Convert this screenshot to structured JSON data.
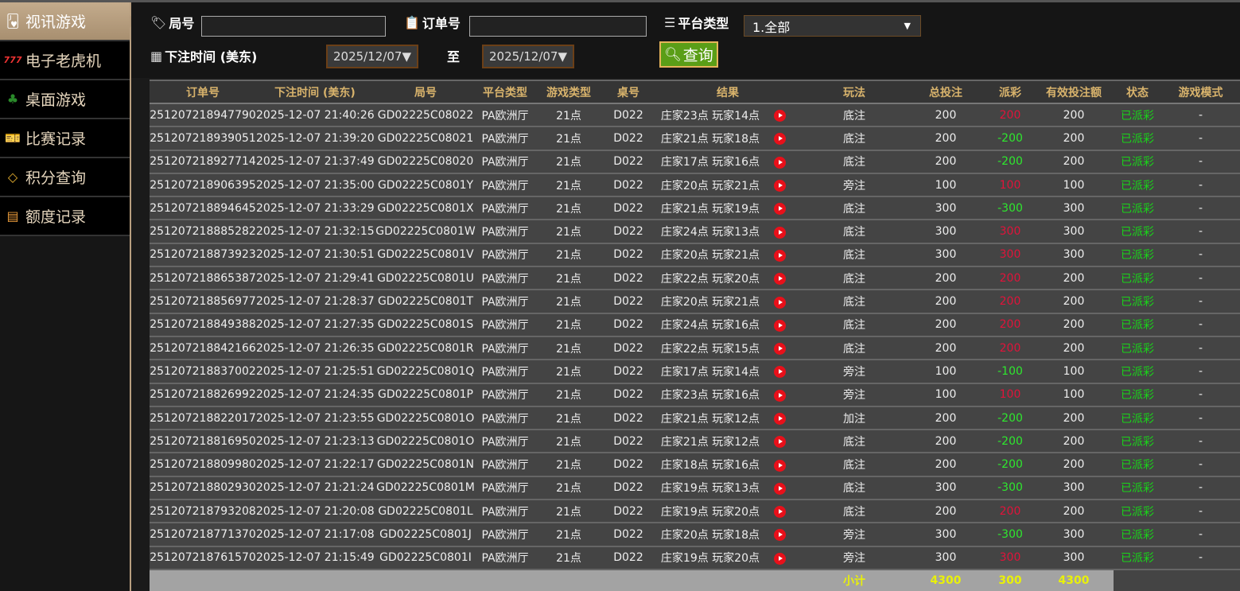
{
  "sidebar": {
    "items": [
      {
        "label": "视讯游戏",
        "icon": "playing-cards-icon",
        "active": true
      },
      {
        "label": "电子老虎机",
        "icon": "slot-777-icon"
      },
      {
        "label": "桌面游戏",
        "icon": "table-game-chips-icon"
      },
      {
        "label": "比赛记录",
        "icon": "ticket-icon"
      },
      {
        "label": "积分查询",
        "icon": "diamond-icon"
      },
      {
        "label": "额度记录",
        "icon": "document-icon"
      }
    ]
  },
  "filters": {
    "round_label": "局号",
    "round_value": "",
    "order_label": "订单号",
    "order_value": "",
    "platform_label": "平台类型",
    "platform_value": "1.全部",
    "time_label": "下注时间 (美东)",
    "date_from": "2025/12/07▼",
    "to_label": "至",
    "date_to": "2025/12/07▼",
    "query_label": "查询"
  },
  "table": {
    "headers": [
      "订单号",
      "下注时间 (美东)",
      "局号",
      "平台类型",
      "游戏类型",
      "桌号",
      "结果",
      "玩法",
      "总投注",
      "派彩",
      "有效投注额",
      "状态",
      "游戏模式"
    ],
    "rows": [
      [
        "251207218947790",
        "2025-12-07 21:40:26",
        "GD02225C08022",
        "PA欧洲厅",
        "21点",
        "D022",
        "庄家23点 玩家14点",
        "底注",
        "200",
        "200",
        "200",
        "已派彩",
        "-"
      ],
      [
        "251207218939051",
        "2025-12-07 21:39:20",
        "GD02225C08021",
        "PA欧洲厅",
        "21点",
        "D022",
        "庄家21点 玩家18点",
        "底注",
        "200",
        "-200",
        "200",
        "已派彩",
        "-"
      ],
      [
        "251207218927714",
        "2025-12-07 21:37:49",
        "GD02225C08020",
        "PA欧洲厅",
        "21点",
        "D022",
        "庄家17点 玩家16点",
        "底注",
        "200",
        "-200",
        "200",
        "已派彩",
        "-"
      ],
      [
        "251207218906395",
        "2025-12-07 21:35:00",
        "GD02225C0801Y",
        "PA欧洲厅",
        "21点",
        "D022",
        "庄家20点 玩家21点",
        "旁注",
        "100",
        "100",
        "100",
        "已派彩",
        "-"
      ],
      [
        "251207218894645",
        "2025-12-07 21:33:29",
        "GD02225C0801X",
        "PA欧洲厅",
        "21点",
        "D022",
        "庄家21点 玩家19点",
        "底注",
        "300",
        "-300",
        "300",
        "已派彩",
        "-"
      ],
      [
        "251207218885282",
        "2025-12-07 21:32:15",
        "GD02225C0801W",
        "PA欧洲厅",
        "21点",
        "D022",
        "庄家24点 玩家13点",
        "底注",
        "300",
        "300",
        "300",
        "已派彩",
        "-"
      ],
      [
        "251207218873923",
        "2025-12-07 21:30:51",
        "GD02225C0801V",
        "PA欧洲厅",
        "21点",
        "D022",
        "庄家20点 玩家21点",
        "底注",
        "300",
        "300",
        "300",
        "已派彩",
        "-"
      ],
      [
        "251207218865387",
        "2025-12-07 21:29:41",
        "GD02225C0801U",
        "PA欧洲厅",
        "21点",
        "D022",
        "庄家22点 玩家20点",
        "底注",
        "200",
        "200",
        "200",
        "已派彩",
        "-"
      ],
      [
        "251207218856977",
        "2025-12-07 21:28:37",
        "GD02225C0801T",
        "PA欧洲厅",
        "21点",
        "D022",
        "庄家20点 玩家21点",
        "底注",
        "200",
        "200",
        "200",
        "已派彩",
        "-"
      ],
      [
        "251207218849388",
        "2025-12-07 21:27:35",
        "GD02225C0801S",
        "PA欧洲厅",
        "21点",
        "D022",
        "庄家24点 玩家16点",
        "底注",
        "200",
        "200",
        "200",
        "已派彩",
        "-"
      ],
      [
        "251207218842166",
        "2025-12-07 21:26:35",
        "GD02225C0801R",
        "PA欧洲厅",
        "21点",
        "D022",
        "庄家22点 玩家15点",
        "底注",
        "200",
        "200",
        "200",
        "已派彩",
        "-"
      ],
      [
        "251207218837002",
        "2025-12-07 21:25:51",
        "GD02225C0801Q",
        "PA欧洲厅",
        "21点",
        "D022",
        "庄家17点 玩家14点",
        "旁注",
        "100",
        "-100",
        "100",
        "已派彩",
        "-"
      ],
      [
        "251207218826992",
        "2025-12-07 21:24:35",
        "GD02225C0801P",
        "PA欧洲厅",
        "21点",
        "D022",
        "庄家23点 玩家16点",
        "旁注",
        "100",
        "100",
        "100",
        "已派彩",
        "-"
      ],
      [
        "251207218822017",
        "2025-12-07 21:23:55",
        "GD02225C0801O",
        "PA欧洲厅",
        "21点",
        "D022",
        "庄家21点 玩家12点",
        "加注",
        "200",
        "-200",
        "200",
        "已派彩",
        "-"
      ],
      [
        "251207218816950",
        "2025-12-07 21:23:13",
        "GD02225C0801O",
        "PA欧洲厅",
        "21点",
        "D022",
        "庄家21点 玩家12点",
        "底注",
        "200",
        "-200",
        "200",
        "已派彩",
        "-"
      ],
      [
        "251207218809980",
        "2025-12-07 21:22:17",
        "GD02225C0801N",
        "PA欧洲厅",
        "21点",
        "D022",
        "庄家18点 玩家16点",
        "底注",
        "200",
        "-200",
        "200",
        "已派彩",
        "-"
      ],
      [
        "251207218802930",
        "2025-12-07 21:21:24",
        "GD02225C0801M",
        "PA欧洲厅",
        "21点",
        "D022",
        "庄家19点 玩家13点",
        "底注",
        "300",
        "-300",
        "300",
        "已派彩",
        "-"
      ],
      [
        "251207218793208",
        "2025-12-07 21:20:08",
        "GD02225C0801L",
        "PA欧洲厅",
        "21点",
        "D022",
        "庄家19点 玩家20点",
        "底注",
        "200",
        "200",
        "200",
        "已派彩",
        "-"
      ],
      [
        "251207218771370",
        "2025-12-07 21:17:08",
        "GD02225C0801J",
        "PA欧洲厅",
        "21点",
        "D022",
        "庄家20点 玩家18点",
        "旁注",
        "300",
        "-300",
        "300",
        "已派彩",
        "-"
      ],
      [
        "251207218761570",
        "2025-12-07 21:15:49",
        "GD02225C0801I",
        "PA欧洲厅",
        "21点",
        "D022",
        "庄家19点 玩家20点",
        "旁注",
        "300",
        "300",
        "300",
        "已派彩",
        "-"
      ]
    ],
    "subtotal": {
      "label": "小计",
      "total_bet": "4300",
      "payout": "300",
      "valid_bet": "4300"
    }
  },
  "colors": {
    "payout_positive": "#e0133a",
    "payout_negative": "#2ee82e",
    "status": "#19d419",
    "header_text": "#d8b36c",
    "accent": "#b89f80"
  }
}
